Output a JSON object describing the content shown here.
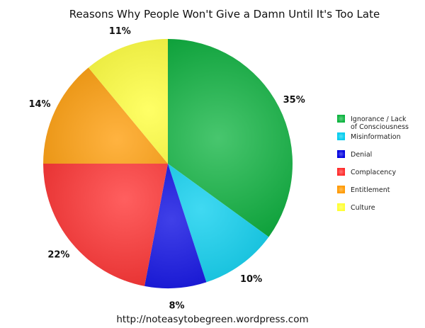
{
  "chart_data": {
    "type": "pie",
    "title": "Reasons Why People Won't Give a Damn Until It's Too Late",
    "categories": [
      "Ignorance / Lack of Consciousness",
      "Misinformation",
      "Denial",
      "Complacency",
      "Entitlement",
      "Culture"
    ],
    "legend_lines": [
      [
        "Ignorance / Lack",
        "of Consciousness"
      ],
      [
        "Misinformation"
      ],
      [
        "Denial"
      ],
      [
        "Complacency"
      ],
      [
        "Entitlement"
      ],
      [
        "Culture"
      ]
    ],
    "values": [
      35,
      10,
      8,
      22,
      14,
      11
    ],
    "value_labels": [
      "35%",
      "10%",
      "8%",
      "22%",
      "14%",
      "11%"
    ],
    "colors": [
      "#0bb33e",
      "#00ccee",
      "#0000e0",
      "#ff2a2a",
      "#ff9900",
      "#ffff33"
    ],
    "legend_position": "right",
    "grid": false
  },
  "footer": "http://noteasytobegreen.wordpress.com"
}
